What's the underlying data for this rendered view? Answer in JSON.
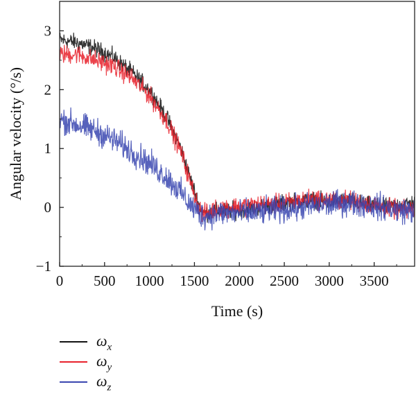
{
  "chart_data": {
    "type": "line",
    "xlabel": "Time (s)",
    "ylabel": "Angular velocity (°/s)",
    "xlim": [
      0,
      3950
    ],
    "ylim": [
      -1,
      3.5
    ],
    "x_ticks": [
      0,
      500,
      1000,
      1500,
      2000,
      2500,
      3000,
      3500
    ],
    "y_ticks": [
      -1,
      0,
      1,
      2,
      3
    ],
    "x_tick_labels": [
      "0",
      "500",
      "1000",
      "1500",
      "2000",
      "2500",
      "3000",
      "3500"
    ],
    "y_tick_labels": [
      "−1",
      "0",
      "1",
      "2",
      "3"
    ],
    "legend_position": "bottom-left, below plot",
    "grid": false,
    "series": [
      {
        "name": "ωx",
        "symbol": "ω",
        "subscript": "x",
        "color": "#111111",
        "noise": 0.07,
        "x": [
          0,
          200,
          400,
          600,
          800,
          1000,
          1200,
          1350,
          1450,
          1550,
          1600,
          1700,
          1800,
          2000,
          2200,
          2400,
          2600,
          2800,
          3000,
          3200,
          3400,
          3600,
          3800,
          3950
        ],
        "y": [
          2.85,
          2.8,
          2.7,
          2.55,
          2.3,
          2.0,
          1.5,
          1.0,
          0.5,
          0.05,
          -0.1,
          -0.08,
          -0.05,
          -0.05,
          0.0,
          0.05,
          0.1,
          0.12,
          0.1,
          0.12,
          0.05,
          0.0,
          0.05,
          0.08
        ]
      },
      {
        "name": "ωy",
        "symbol": "ω",
        "subscript": "y",
        "color": "#e8212b",
        "noise": 0.08,
        "x": [
          0,
          200,
          400,
          600,
          800,
          1000,
          1200,
          1350,
          1450,
          1550,
          1600,
          1700,
          1800,
          2000,
          2200,
          2400,
          2600,
          2800,
          3000,
          3200,
          3400,
          3600,
          3800,
          3950
        ],
        "y": [
          2.6,
          2.6,
          2.5,
          2.4,
          2.2,
          1.9,
          1.45,
          0.95,
          0.45,
          0.0,
          -0.12,
          -0.05,
          0.0,
          0.02,
          0.05,
          0.05,
          0.1,
          0.15,
          0.12,
          0.12,
          0.08,
          0.0,
          -0.05,
          -0.03
        ]
      },
      {
        "name": "ωz",
        "symbol": "ω",
        "subscript": "z",
        "color": "#3a46b0",
        "noise": 0.11,
        "x": [
          0,
          200,
          400,
          600,
          800,
          1000,
          1200,
          1350,
          1450,
          1550,
          1600,
          1700,
          1800,
          2000,
          2200,
          2400,
          2600,
          2800,
          3000,
          3200,
          3400,
          3600,
          3800,
          3950
        ],
        "y": [
          1.5,
          1.4,
          1.3,
          1.15,
          0.95,
          0.75,
          0.5,
          0.25,
          0.05,
          -0.1,
          -0.15,
          -0.12,
          -0.1,
          -0.1,
          -0.08,
          -0.05,
          -0.02,
          0.02,
          0.05,
          0.08,
          0.05,
          0.0,
          -0.05,
          -0.05
        ]
      }
    ]
  }
}
